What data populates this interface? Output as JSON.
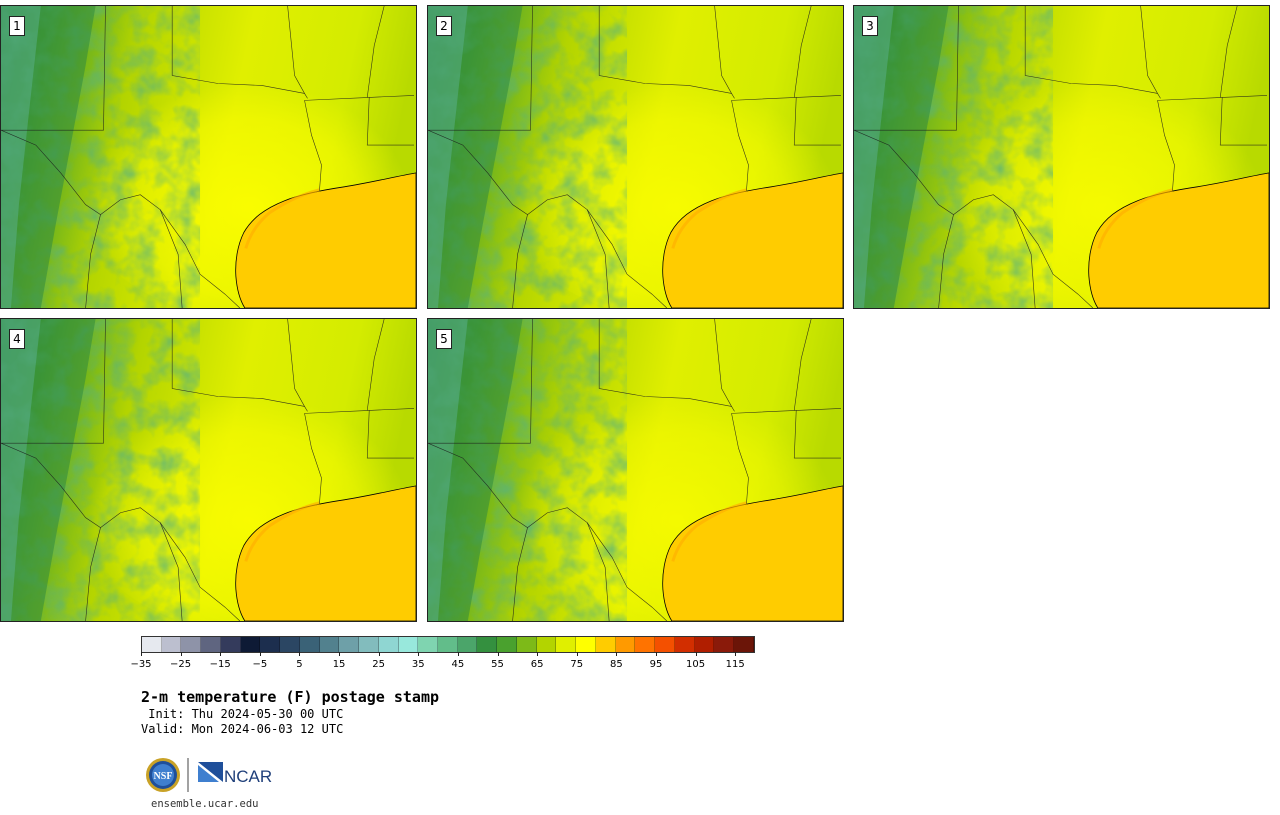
{
  "figure": {
    "title": "2-m temperature (F) postage stamp",
    "init_text": " Init: Thu 2024-05-30 00 UTC",
    "valid_text": "Valid: Mon 2024-06-03 12 UTC",
    "url": "ensemble.ucar.edu"
  },
  "panels": [
    {
      "label": "1",
      "warmth": 0.6
    },
    {
      "label": "2",
      "warmth": 0.45
    },
    {
      "label": "3",
      "warmth": 0.3
    },
    {
      "label": "4",
      "warmth": 0.5
    },
    {
      "label": "5",
      "warmth": 0.25
    }
  ],
  "colorbar": {
    "colors": [
      "#e6e9ef",
      "#bcbfcf",
      "#8e93a8",
      "#5f6580",
      "#343b5c",
      "#0e1a35",
      "#1c2e4e",
      "#2b4663",
      "#3a6277",
      "#52818e",
      "#6ea0a8",
      "#82bcbd",
      "#8fd6d2",
      "#98e8dc",
      "#7fd4b0",
      "#62bd8a",
      "#4ba56a",
      "#34903f",
      "#4aa12e",
      "#7dba18",
      "#b3d400",
      "#e0ef00",
      "#ffff00",
      "#ffcc00",
      "#ff9a00",
      "#ff7300",
      "#f45000",
      "#d22e00",
      "#b01e00",
      "#8a1a0a",
      "#6b1508"
    ],
    "tick_labels": [
      "−35",
      "−25",
      "−15",
      "−5",
      "5",
      "15",
      "25",
      "35",
      "45",
      "55",
      "65",
      "75",
      "85",
      "95",
      "105",
      "115"
    ],
    "min": -35,
    "max": 120,
    "step": 5,
    "label_step": 10
  },
  "logos": {
    "nsf": "NSF",
    "ncar": "NCAR"
  }
}
